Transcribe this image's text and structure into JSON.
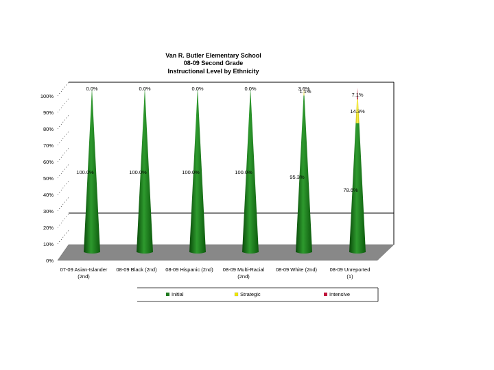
{
  "chart_data": {
    "type": "bar",
    "style": "3d-cone-stacked-100",
    "title": [
      "Van R. Butler Elementary School",
      "08-09 Second Grade",
      "Instructional Level by Ethnicity"
    ],
    "categories": [
      [
        "07-09 Asian-Islander",
        "(2nd)"
      ],
      [
        "08-09 Black (2nd)"
      ],
      [
        "08-09 Hispanic (2nd)"
      ],
      [
        "08-09 Multi-Racial",
        "(2nd)"
      ],
      [
        "08-09 White (2nd)"
      ],
      [
        "08-09 Unreported",
        "(1)"
      ]
    ],
    "series": [
      {
        "name": "Initial",
        "color": "#1f7a1f",
        "values": [
          100.0,
          100.0,
          100.0,
          100.0,
          95.3,
          78.6
        ],
        "labels": [
          "100.0%",
          "100.0%",
          "100.0%",
          "100.0%",
          "95.3%",
          "78.6%"
        ]
      },
      {
        "name": "Strategic",
        "color": "#f0e800",
        "values": [
          0.0,
          0.0,
          0.0,
          0.0,
          3.6,
          14.3
        ],
        "labels": [
          "0.0%",
          "0.0%",
          "0.0%",
          "0.0%",
          "3.6%",
          "14.3%"
        ]
      },
      {
        "name": "Intensive",
        "color": "#c0143c",
        "values": [
          0.0,
          0.0,
          0.0,
          0.0,
          1.1,
          7.1
        ],
        "labels": [
          "",
          "",
          "",
          "",
          "1.1%",
          "7.1%"
        ]
      }
    ],
    "y_ticks": [
      "0%",
      "10%",
      "20%",
      "30%",
      "40%",
      "50%",
      "60%",
      "70%",
      "80%",
      "90%",
      "100%"
    ],
    "ylim": [
      0,
      100
    ],
    "legend_position": "bottom"
  }
}
